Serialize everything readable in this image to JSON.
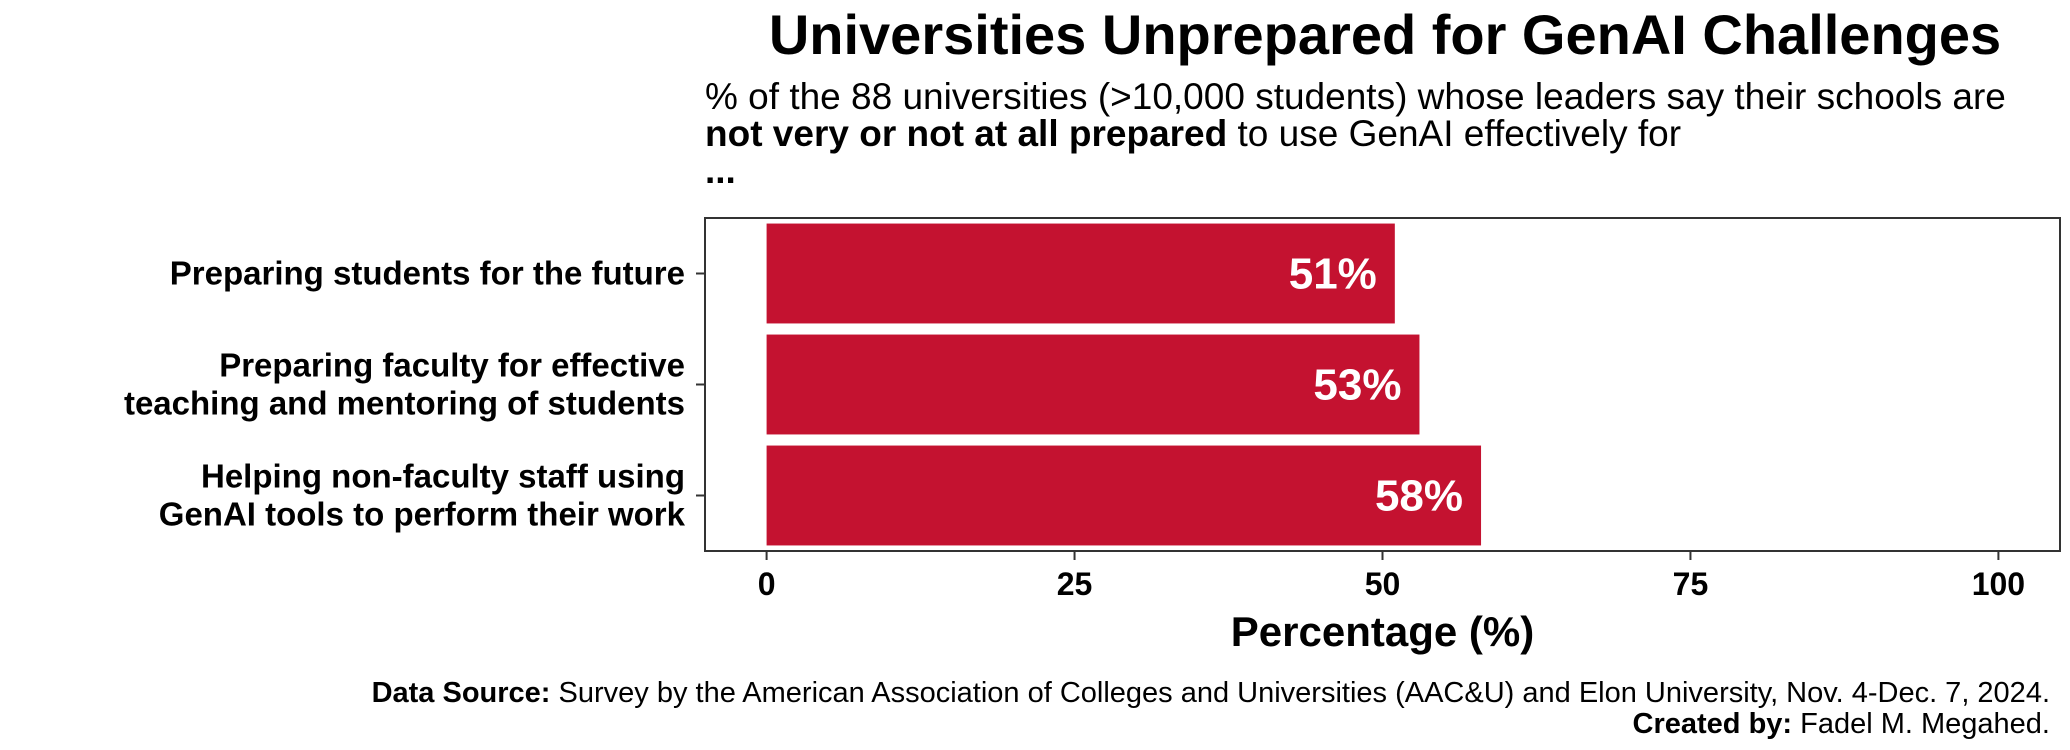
{
  "chart_data": {
    "type": "bar",
    "orientation": "horizontal",
    "title": "Universities Unprepared for GenAI Challenges",
    "subtitle_parts": [
      "% of the 88 universities (>10,000 students) whose leaders say their schools are ",
      "not very or not at all prepared",
      " to use GenAI effectively for ",
      "..."
    ],
    "categories": [
      "Preparing students for the future",
      "Preparing faculty for effective\nteaching and mentoring of students",
      "Helping non-faculty staff using\nGenAI tools to perform their work"
    ],
    "values": [
      51,
      53,
      58
    ],
    "data_labels": [
      "51%",
      "53%",
      "58%"
    ],
    "xlabel": "Percentage (%)",
    "ylabel": "",
    "xlim": [
      -5,
      105
    ],
    "ticks": [
      0,
      25,
      50,
      75,
      100
    ],
    "tick_labels": [
      "0",
      "25",
      "50",
      "75",
      "100"
    ],
    "bar_color": "#C41230",
    "label_color": "#ffffff",
    "grid": false,
    "legend": "none"
  },
  "caption": {
    "source_label": "Data Source:",
    "source_text": " Survey by the American Association of Colleges and Universities (AAC&U) and Elon University, Nov. 4-Dec. 7, 2024.",
    "created_label": "Created by:",
    "created_text": " Fadel M. Megahed."
  }
}
